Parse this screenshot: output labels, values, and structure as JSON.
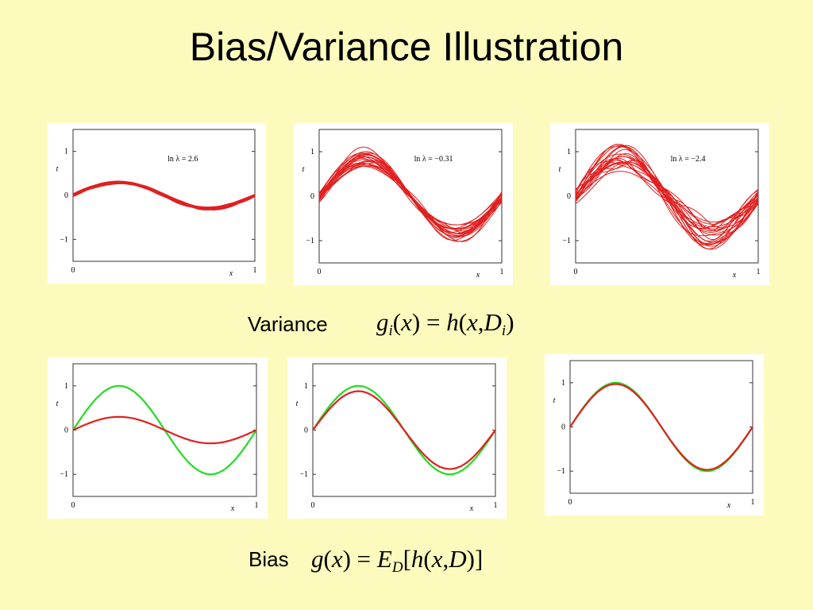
{
  "title": "Bias/Variance Illustration",
  "variance": {
    "label": "Variance",
    "formula": {
      "g": "g",
      "i": "i",
      "x": "x",
      "eq": "=",
      "h": "h",
      "D": "D"
    }
  },
  "bias": {
    "label": "Bias",
    "formula": {
      "g": "g",
      "x": "x",
      "eq": "=",
      "E": "E",
      "D": "D",
      "h": "h"
    }
  },
  "colors": {
    "fit": "#e02020",
    "true_fn": "#22dd22",
    "background": "#fcfbbd"
  },
  "chart_data": [
    {
      "type": "line",
      "row": "variance",
      "annotation": "ln λ = 2.6",
      "xlabel": "x",
      "ylabel": "t",
      "xlim": [
        0,
        1
      ],
      "ylim": [
        -1.5,
        1.5
      ],
      "xticks": [
        "0",
        "1"
      ],
      "yticks": [
        "1",
        "0",
        "−1"
      ],
      "series": [
        {
          "kind": "ensemble",
          "count": 20,
          "amplitude": 0.3,
          "spread": 0.06
        }
      ]
    },
    {
      "type": "line",
      "row": "variance",
      "annotation": "ln λ = −0.31",
      "xlabel": "x",
      "ylabel": "t",
      "xlim": [
        0,
        1
      ],
      "ylim": [
        -1.5,
        1.5
      ],
      "xticks": [
        "0",
        "1"
      ],
      "yticks": [
        "1",
        "0",
        "−1"
      ],
      "series": [
        {
          "kind": "ensemble",
          "count": 22,
          "amplitude": 0.85,
          "spread": 0.18
        }
      ]
    },
    {
      "type": "line",
      "row": "variance",
      "annotation": "ln λ = −2.4",
      "xlabel": "x",
      "ylabel": "t",
      "xlim": [
        0,
        1
      ],
      "ylim": [
        -1.5,
        1.5
      ],
      "xticks": [
        "0",
        "1"
      ],
      "yticks": [
        "1",
        "0",
        "−1"
      ],
      "series": [
        {
          "kind": "ensemble",
          "count": 22,
          "amplitude": 0.9,
          "spread": 0.3
        }
      ]
    },
    {
      "type": "line",
      "row": "bias",
      "annotation": "",
      "xlabel": "x",
      "ylabel": "t",
      "xlim": [
        0,
        1
      ],
      "ylim": [
        -1.5,
        1.5
      ],
      "xticks": [
        "0",
        "1"
      ],
      "yticks": [
        "1",
        "0",
        "−1"
      ],
      "series": [
        {
          "kind": "true",
          "amplitude": 1.0
        },
        {
          "kind": "mean",
          "amplitude": 0.3
        }
      ]
    },
    {
      "type": "line",
      "row": "bias",
      "annotation": "",
      "xlabel": "x",
      "ylabel": "t",
      "xlim": [
        0,
        1
      ],
      "ylim": [
        -1.5,
        1.5
      ],
      "xticks": [
        "0",
        "1"
      ],
      "yticks": [
        "1",
        "0",
        "−1"
      ],
      "series": [
        {
          "kind": "true",
          "amplitude": 1.0
        },
        {
          "kind": "mean",
          "amplitude": 0.88
        }
      ]
    },
    {
      "type": "line",
      "row": "bias",
      "annotation": "",
      "xlabel": "x",
      "ylabel": "t",
      "xlim": [
        0,
        1
      ],
      "ylim": [
        -1.5,
        1.5
      ],
      "xticks": [
        "0",
        "1"
      ],
      "yticks": [
        "1",
        "0",
        "−1"
      ],
      "series": [
        {
          "kind": "true",
          "amplitude": 1.0
        },
        {
          "kind": "mean",
          "amplitude": 0.97
        }
      ]
    }
  ]
}
